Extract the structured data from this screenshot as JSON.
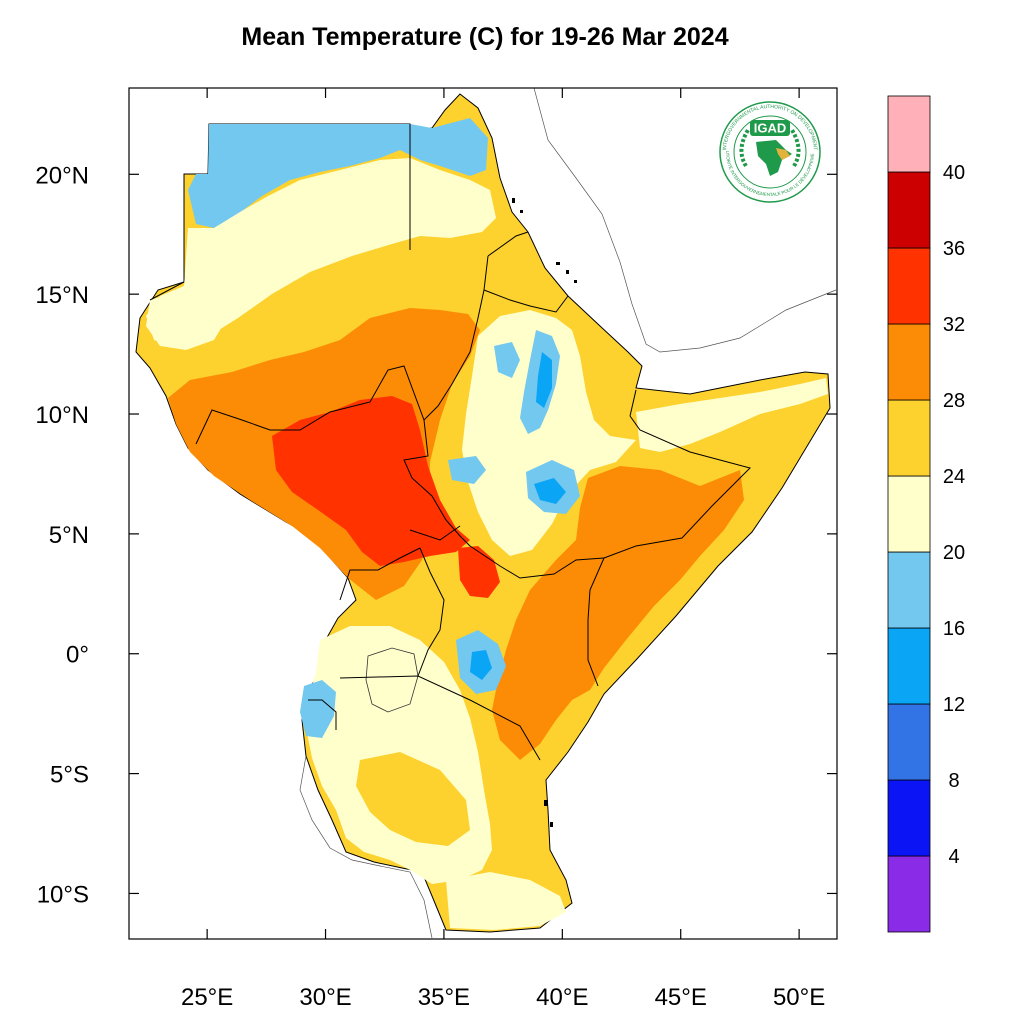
{
  "title": "Mean Temperature (C) for 19-26 Mar 2024",
  "map": {
    "lon_range": [
      21.7,
      51.6
    ],
    "lat_range": [
      -11.9,
      23.6
    ],
    "lon_ticks": [
      {
        "value": 25,
        "label": "25°E"
      },
      {
        "value": 30,
        "label": "30°E"
      },
      {
        "value": 35,
        "label": "35°E"
      },
      {
        "value": 40,
        "label": "40°E"
      },
      {
        "value": 45,
        "label": "45°E"
      },
      {
        "value": 50,
        "label": "50°E"
      }
    ],
    "lat_ticks": [
      {
        "value": 20,
        "label": "20°N"
      },
      {
        "value": 15,
        "label": "15°N"
      },
      {
        "value": 10,
        "label": "10°N"
      },
      {
        "value": 5,
        "label": "5°N"
      },
      {
        "value": 0,
        "label": "0°"
      },
      {
        "value": -5,
        "label": "5°S"
      },
      {
        "value": -10,
        "label": "10°S"
      }
    ]
  },
  "colorbar": {
    "bins": [
      {
        "color": "#8a2be8"
      },
      {
        "color": "#0a14f5"
      },
      {
        "color": "#3273e6"
      },
      {
        "color": "#0aa5f5"
      },
      {
        "color": "#73c8f0"
      },
      {
        "color": "#ffffcc"
      },
      {
        "color": "#fdd12e"
      },
      {
        "color": "#fc8c05"
      },
      {
        "color": "#ff3200"
      },
      {
        "color": "#cc0000"
      },
      {
        "color": "#ffb0b8"
      }
    ],
    "labels": [
      "4",
      "8",
      "12",
      "16",
      "20",
      "24",
      "28",
      "32",
      "36",
      "40"
    ]
  },
  "logo": {
    "text": "IGAD",
    "ring_text_top": "INTERGOVERNMENTAL AUTHORITY ON DEVELOPMENT",
    "ring_text_bottom": "AUTORITÉ INTERGOUVERNEMENTALE POUR LE DÉVELOPPEMENT",
    "colors": {
      "green": "#1f9a4a",
      "gold": "#e2b33c"
    }
  }
}
